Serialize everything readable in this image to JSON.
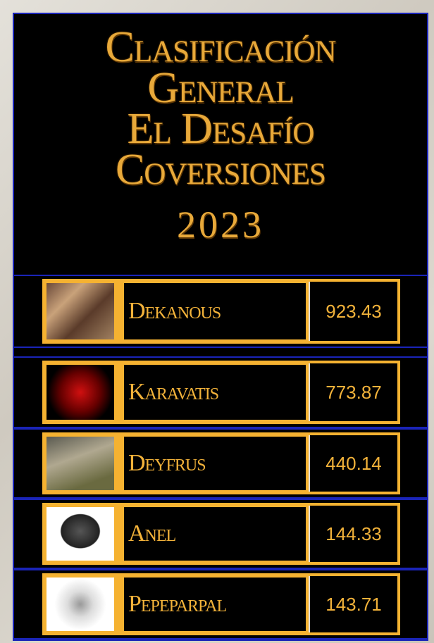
{
  "header": {
    "title_lines": [
      "Clasificación",
      "General",
      "El Desafío",
      "Coversiones"
    ],
    "year": "2023"
  },
  "table": {
    "rows": [
      {
        "name": "Dekanous",
        "score": 923.43
      },
      {
        "name": "Karavatis",
        "score": 773.87
      },
      {
        "name": "Deyfrus",
        "score": 440.14
      },
      {
        "name": "Anel",
        "score": 144.33
      },
      {
        "name": "Pepeparpal",
        "score": 143.71
      }
    ]
  }
}
